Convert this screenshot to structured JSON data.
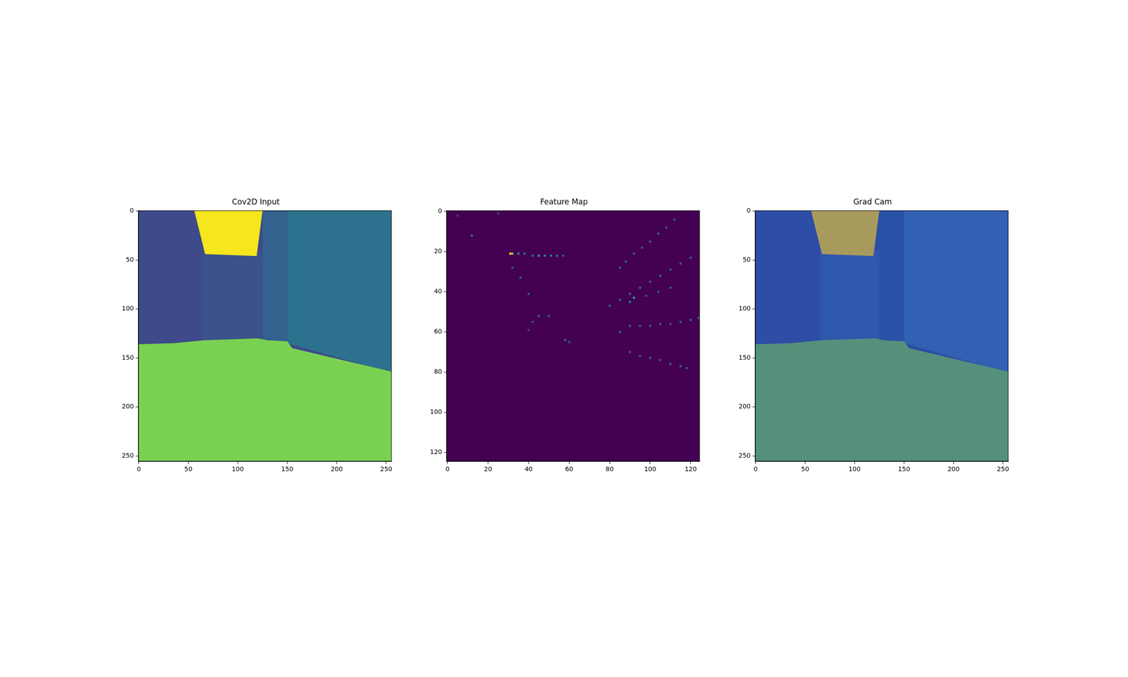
{
  "chart_data": [
    {
      "type": "image",
      "title": "Cov2D Input",
      "xlim": [
        -0.5,
        255.5
      ],
      "ylim": [
        255.5,
        -0.5
      ],
      "xticks": [
        0,
        50,
        100,
        150,
        200,
        250
      ],
      "yticks": [
        0,
        50,
        100,
        150,
        200,
        250
      ],
      "regions": [
        {
          "color": "#3e4a89",
          "points": [
            [
              -0.5,
              -0.5
            ],
            [
              255.5,
              -0.5
            ],
            [
              255.5,
              255.5
            ],
            [
              -0.5,
              255.5
            ]
          ]
        },
        {
          "color": "#3b528b",
          "points": [
            [
              65,
              40
            ],
            [
              125,
              40
            ],
            [
              125,
              132
            ],
            [
              65,
              132
            ]
          ]
        },
        {
          "color": "#34618d",
          "points": [
            [
              125,
              -0.5
            ],
            [
              150,
              -0.5
            ],
            [
              150,
              134
            ],
            [
              125,
              134
            ]
          ]
        },
        {
          "color": "#2c728e",
          "points": [
            [
              150,
              -0.5
            ],
            [
              255.5,
              -0.5
            ],
            [
              255.5,
              165
            ],
            [
              150,
              135
            ]
          ]
        },
        {
          "color": "#f5e61d",
          "points": [
            [
              56,
              -0.5
            ],
            [
              125,
              -0.5
            ],
            [
              119,
              46
            ],
            [
              67,
              44
            ]
          ]
        },
        {
          "color": "#7ad151",
          "points": [
            [
              -0.5,
              136
            ],
            [
              35,
              135
            ],
            [
              65,
              132
            ],
            [
              120,
              130
            ],
            [
              130,
              132
            ],
            [
              150,
              133
            ],
            [
              155,
              140
            ],
            [
              255.5,
              164
            ],
            [
              255.5,
              255.5
            ],
            [
              -0.5,
              255.5
            ]
          ]
        }
      ]
    },
    {
      "type": "heatmap",
      "title": "Feature Map",
      "xlim": [
        -0.5,
        124.5
      ],
      "ylim": [
        124.5,
        -0.5
      ],
      "xticks": [
        0,
        20,
        40,
        60,
        80,
        100,
        120
      ],
      "yticks": [
        0,
        20,
        40,
        60,
        80,
        100,
        120
      ],
      "vlim": [
        0,
        1
      ],
      "regions": [
        {
          "color": "#440154",
          "points": [
            [
              -0.5,
              -0.5
            ],
            [
              124.5,
              -0.5
            ],
            [
              124.5,
              124.5
            ],
            [
              -0.5,
              124.5
            ]
          ]
        }
      ],
      "cells": [
        [
          31,
          21,
          1.0
        ],
        [
          32,
          21,
          0.8
        ],
        [
          35,
          21,
          0.5
        ],
        [
          38,
          21,
          0.4
        ],
        [
          42,
          22,
          0.4
        ],
        [
          45,
          22,
          0.6
        ],
        [
          48,
          22,
          0.5
        ],
        [
          51,
          22,
          0.5
        ],
        [
          54,
          22,
          0.4
        ],
        [
          57,
          22,
          0.3
        ],
        [
          12,
          12,
          0.4
        ],
        [
          5,
          2,
          0.2
        ],
        [
          25,
          1,
          0.2
        ],
        [
          32,
          28,
          0.3
        ],
        [
          36,
          33,
          0.3
        ],
        [
          40,
          41,
          0.3
        ],
        [
          45,
          52,
          0.3
        ],
        [
          50,
          52,
          0.3
        ],
        [
          42,
          55,
          0.25
        ],
        [
          40,
          59,
          0.2
        ],
        [
          58,
          64,
          0.3
        ],
        [
          60,
          65,
          0.3
        ],
        [
          80,
          47,
          0.3
        ],
        [
          85,
          44,
          0.3
        ],
        [
          90,
          41,
          0.35
        ],
        [
          95,
          38,
          0.35
        ],
        [
          100,
          35,
          0.3
        ],
        [
          105,
          32,
          0.3
        ],
        [
          110,
          29,
          0.3
        ],
        [
          115,
          26,
          0.3
        ],
        [
          120,
          23,
          0.3
        ],
        [
          85,
          60,
          0.3
        ],
        [
          90,
          57,
          0.35
        ],
        [
          95,
          57,
          0.3
        ],
        [
          100,
          57,
          0.3
        ],
        [
          105,
          56,
          0.3
        ],
        [
          110,
          56,
          0.3
        ],
        [
          115,
          55,
          0.3
        ],
        [
          120,
          54,
          0.35
        ],
        [
          124,
          53,
          0.4
        ],
        [
          90,
          45,
          0.5
        ],
        [
          92,
          43,
          0.6
        ],
        [
          98,
          42,
          0.3
        ],
        [
          104,
          40,
          0.3
        ],
        [
          110,
          38,
          0.3
        ],
        [
          85,
          28,
          0.3
        ],
        [
          88,
          25,
          0.35
        ],
        [
          92,
          21,
          0.3
        ],
        [
          96,
          18,
          0.3
        ],
        [
          100,
          15,
          0.3
        ],
        [
          104,
          11,
          0.3
        ],
        [
          108,
          8,
          0.3
        ],
        [
          112,
          4,
          0.25
        ],
        [
          90,
          70,
          0.3
        ],
        [
          95,
          72,
          0.3
        ],
        [
          100,
          73,
          0.3
        ],
        [
          105,
          74,
          0.3
        ],
        [
          110,
          76,
          0.35
        ],
        [
          115,
          77,
          0.35
        ],
        [
          118,
          78,
          0.3
        ]
      ]
    },
    {
      "type": "image",
      "title": "Grad Cam",
      "xlim": [
        -0.5,
        255.5
      ],
      "ylim": [
        255.5,
        -0.5
      ],
      "xticks": [
        0,
        50,
        100,
        150,
        200,
        250
      ],
      "yticks": [
        0,
        50,
        100,
        150,
        200,
        250
      ],
      "regions": [
        {
          "color": "#2e4da6",
          "points": [
            [
              -0.5,
              -0.5
            ],
            [
              255.5,
              -0.5
            ],
            [
              255.5,
              255.5
            ],
            [
              -0.5,
              255.5
            ]
          ]
        },
        {
          "color": "#2f58ad",
          "points": [
            [
              65,
              40
            ],
            [
              125,
              40
            ],
            [
              125,
              132
            ],
            [
              65,
              132
            ]
          ]
        },
        {
          "color": "#2a51a8",
          "points": [
            [
              125,
              -0.5
            ],
            [
              150,
              -0.5
            ],
            [
              150,
              134
            ],
            [
              125,
              134
            ]
          ]
        },
        {
          "color": "#3260b3",
          "points": [
            [
              150,
              -0.5
            ],
            [
              255.5,
              -0.5
            ],
            [
              255.5,
              165
            ],
            [
              150,
              135
            ]
          ]
        },
        {
          "color": "#a89a5c",
          "points": [
            [
              56,
              -0.5
            ],
            [
              125,
              -0.5
            ],
            [
              119,
              46
            ],
            [
              67,
              44
            ]
          ]
        },
        {
          "color": "#55907a",
          "points": [
            [
              -0.5,
              136
            ],
            [
              35,
              135
            ],
            [
              65,
              132
            ],
            [
              120,
              130
            ],
            [
              130,
              132
            ],
            [
              150,
              133
            ],
            [
              155,
              140
            ],
            [
              255.5,
              164
            ],
            [
              255.5,
              255.5
            ],
            [
              -0.5,
              255.5
            ]
          ]
        }
      ]
    }
  ]
}
